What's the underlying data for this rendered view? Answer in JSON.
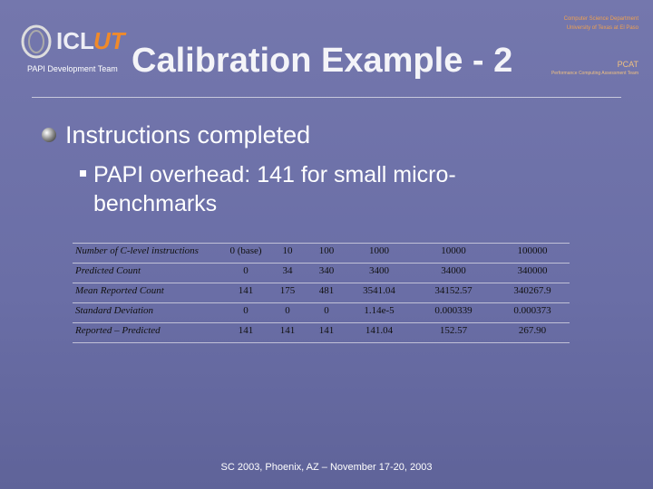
{
  "header": {
    "logo_left": "ICL",
    "logo_right": "UT",
    "team": "PAPI Development Team",
    "title": "Calibration Example - 2",
    "dept_line1": "Computer Science Department",
    "dept_line2": "University of Texas at El Paso",
    "pcat": "PCAT",
    "pcat_sub": "Performance Computing Assessment Team"
  },
  "bullets": {
    "level1": "Instructions completed",
    "level2": "PAPI overhead: 141 for small micro-benchmarks"
  },
  "table": {
    "header": [
      "Number of C-level instructions",
      "0 (base)",
      "10",
      "100",
      "1000",
      "10000",
      "100000"
    ],
    "rows": [
      [
        "Predicted Count",
        "0",
        "34",
        "340",
        "3400",
        "34000",
        "340000"
      ],
      [
        "Mean Reported Count",
        "141",
        "175",
        "481",
        "3541.04",
        "34152.57",
        "340267.9"
      ],
      [
        "Standard Deviation",
        "0",
        "0",
        "0",
        "1.14e-5",
        "0.000339",
        "0.000373"
      ],
      [
        "Reported – Predicted",
        "141",
        "141",
        "141",
        "141.04",
        "152.57",
        "267.90"
      ]
    ]
  },
  "footer": "SC 2003, Phoenix, AZ – November 17-20, 2003"
}
